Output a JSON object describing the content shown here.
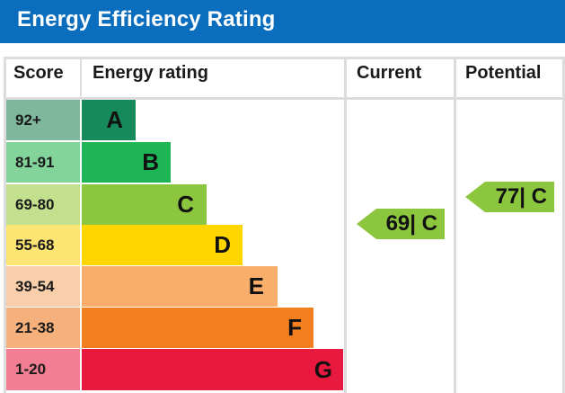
{
  "title": "Energy Efficiency Rating",
  "columns": {
    "score": "Score",
    "energy_rating": "Energy rating",
    "current": "Current",
    "potential": "Potential"
  },
  "bands": [
    {
      "score": "92+",
      "letter": "A",
      "color": "#178a5c",
      "score_color": "#7fb79d"
    },
    {
      "score": "81-91",
      "letter": "B",
      "color": "#1fb456",
      "score_color": "#82d49b"
    },
    {
      "score": "69-80",
      "letter": "C",
      "color": "#8cc63f",
      "score_color": "#c3e08f"
    },
    {
      "score": "55-68",
      "letter": "D",
      "color": "#ffd500",
      "score_color": "#fde573"
    },
    {
      "score": "39-54",
      "letter": "E",
      "color": "#f9ae6b",
      "score_color": "#f8cfaa"
    },
    {
      "score": "21-38",
      "letter": "F",
      "color": "#f17f1f",
      "score_color": "#f6b07b"
    },
    {
      "score": "1-20",
      "letter": "G",
      "color": "#e8183e",
      "score_color": "#f17e92"
    }
  ],
  "current": {
    "value": "69",
    "band": "C",
    "label": "69| C",
    "color": "#8cc63f"
  },
  "potential": {
    "value": "77",
    "band": "C",
    "label": "77| C",
    "color": "#8cc63f"
  }
}
